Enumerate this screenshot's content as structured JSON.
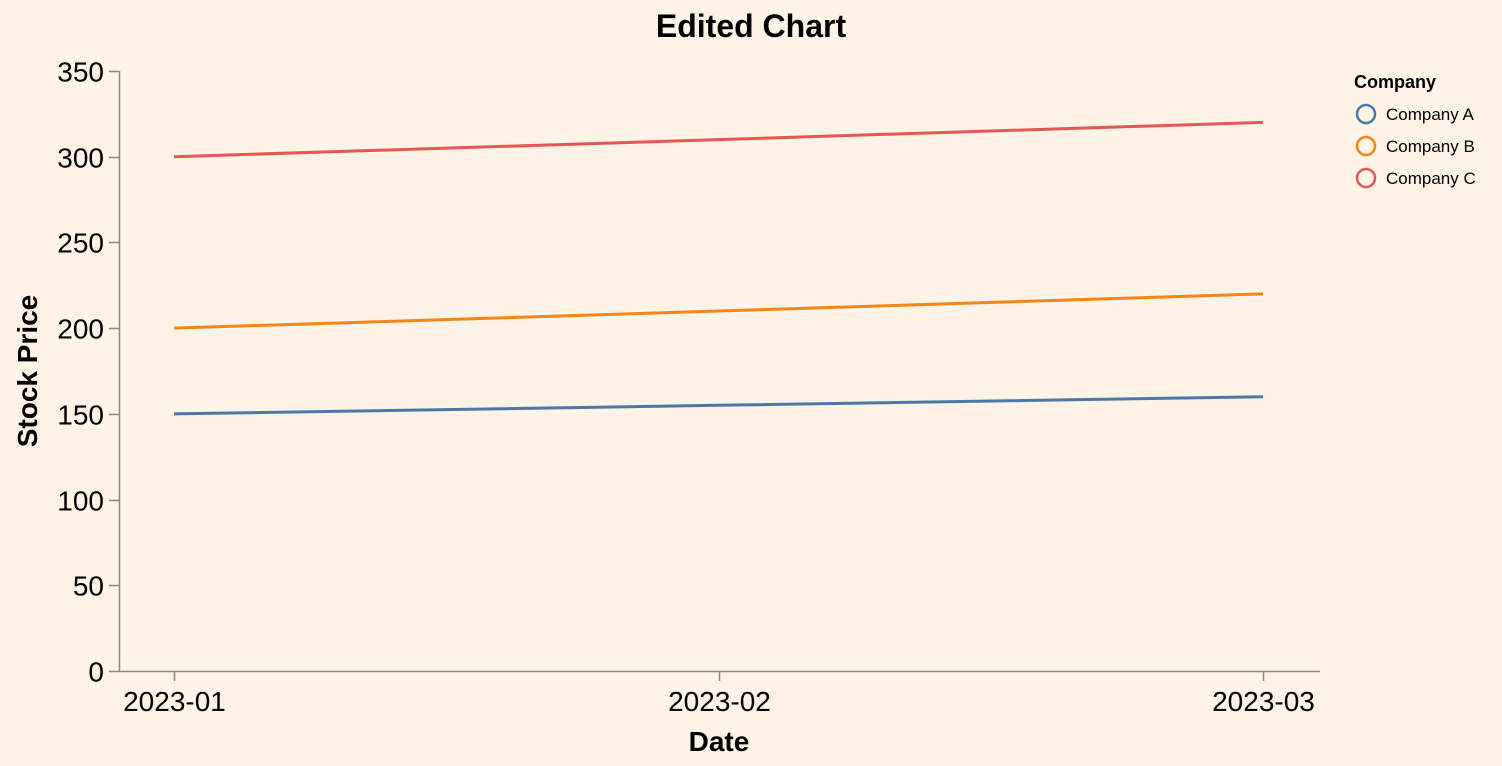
{
  "chart_data": {
    "type": "line",
    "title": "Edited Chart",
    "xlabel": "Date",
    "ylabel": "Stock Price",
    "categories": [
      "2023-01",
      "2023-02",
      "2023-03"
    ],
    "ylim": [
      0,
      350
    ],
    "y_ticks": [
      0,
      50,
      100,
      150,
      200,
      250,
      300,
      350
    ],
    "grid": false,
    "legend": {
      "title": "Company",
      "placement": "top-right"
    },
    "series": [
      {
        "name": "Company A",
        "color": "#4c78a8",
        "values": [
          150,
          155,
          160
        ]
      },
      {
        "name": "Company B",
        "color": "#f58518",
        "values": [
          200,
          210,
          220
        ]
      },
      {
        "name": "Company C",
        "color": "#e45756",
        "values": [
          300,
          310,
          320
        ]
      }
    ]
  }
}
